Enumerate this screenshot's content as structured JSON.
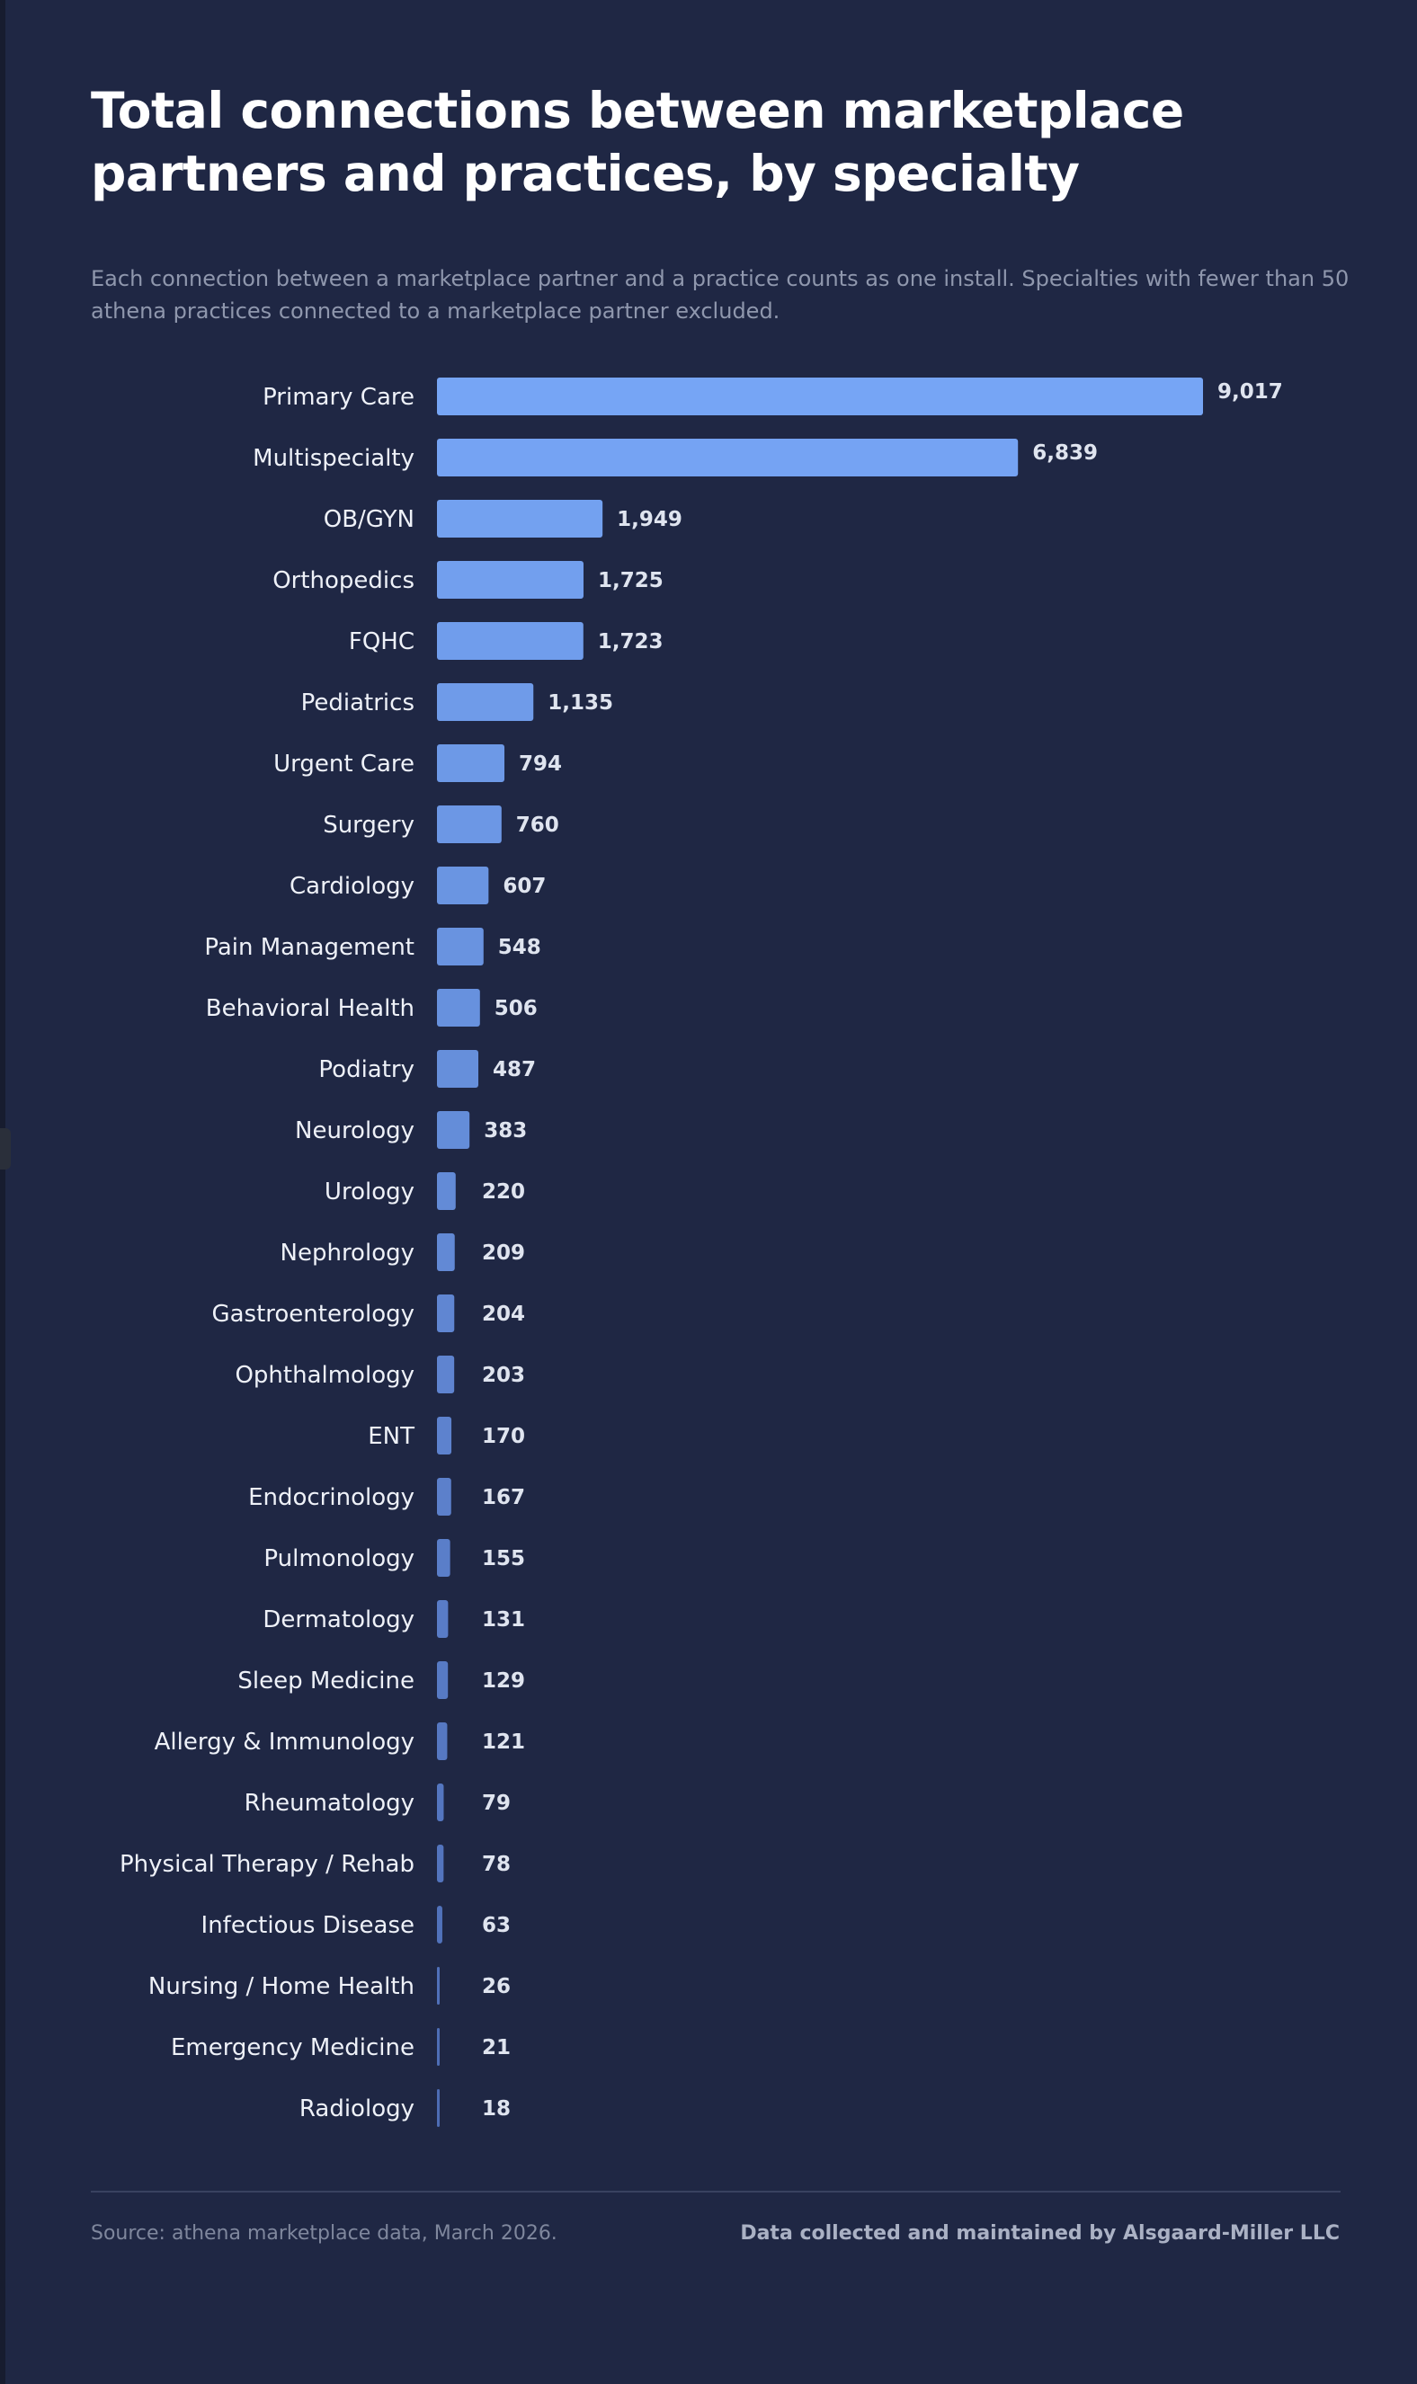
{
  "header": {
    "title": "Total connections between marketplace partners and practices, by specialty",
    "subtitle": "Each connection between a marketplace partner and a practice counts as one install. Specialties with fewer than 50 athena practices connected to a marketplace partner excluded."
  },
  "footer": {
    "source": "Source: athena marketplace data, March 2026.",
    "credit": "Data collected and maintained by Alsgaard-Miller LLC"
  },
  "colors": {
    "background": "#1f2744",
    "bar_top": "#76a5f5",
    "bar_bottom": "#4d6cb4",
    "text": "#eef1f8",
    "muted": "#8f97ad"
  },
  "chart_data": {
    "type": "bar",
    "orientation": "horizontal",
    "title": "Total connections between marketplace partners and practices, by specialty",
    "xlabel": "",
    "ylabel": "",
    "grid": false,
    "xlim": [
      0,
      9017
    ],
    "categories": [
      "Primary Care",
      "Multispecialty",
      "OB/GYN",
      "Orthopedics",
      "FQHC",
      "Pediatrics",
      "Urgent Care",
      "Surgery",
      "Cardiology",
      "Pain Management",
      "Behavioral Health",
      "Podiatry",
      "Neurology",
      "Urology",
      "Nephrology",
      "Gastroenterology",
      "Ophthalmology",
      "ENT",
      "Endocrinology",
      "Pulmonology",
      "Dermatology",
      "Sleep Medicine",
      "Allergy & Immunology",
      "Rheumatology",
      "Physical Therapy / Rehab",
      "Infectious Disease",
      "Nursing / Home Health",
      "Emergency Medicine",
      "Radiology"
    ],
    "values": [
      9017,
      6839,
      1949,
      1725,
      1723,
      1135,
      794,
      760,
      607,
      548,
      506,
      487,
      383,
      220,
      209,
      204,
      203,
      170,
      167,
      155,
      131,
      129,
      121,
      79,
      78,
      63,
      26,
      21,
      18
    ],
    "value_labels": [
      "9,017",
      "6,839",
      "1,949",
      "1,725",
      "1,723",
      "1,135",
      "794",
      "760",
      "607",
      "548",
      "506",
      "487",
      "383",
      "220",
      "209",
      "204",
      "203",
      "170",
      "167",
      "155",
      "131",
      "129",
      "121",
      "79",
      "78",
      "63",
      "26",
      "21",
      "18"
    ]
  }
}
